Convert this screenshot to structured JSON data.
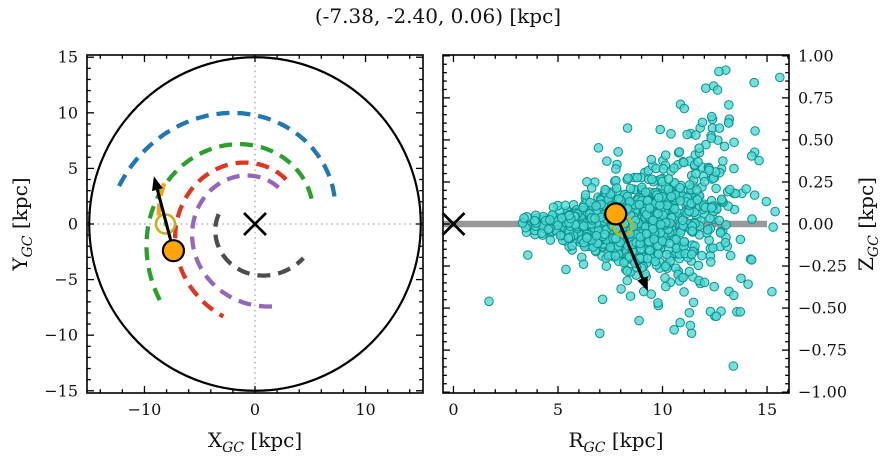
{
  "title": "(-7.38, -2.40, 0.06) [kpc]",
  "colors": {
    "background": "#ffffff",
    "spine": "#000000",
    "crosshair": "#a8a8a8",
    "boundary_circle": "#000000",
    "galactic_center_cross": "#000000",
    "sun_marker": "#c2b415",
    "star_marker": "#ffa508",
    "star_edge": "#000000",
    "arrow": "#000000",
    "scatter_fill": "#4fd8d2",
    "scatter_edge": "#0b8f8f",
    "midplane_line": "#999999"
  },
  "chart_data": [
    {
      "type": "line",
      "panel": "galactic-plane-top-view",
      "description": "Face-on Milky Way sketch: dashed spiral arms, solar-circle boundary (R=15 kpc), galactic center cross, Sun symbol, star position with velocity arrow",
      "xlabel": {
        "prefix": "X",
        "sub": "GC",
        "unit": "[kpc]"
      },
      "ylabel": {
        "prefix": "Y",
        "sub": "GC",
        "unit": "[kpc]"
      },
      "xlim": [
        -15.2,
        15.2
      ],
      "ylim": [
        -15.2,
        15.2
      ],
      "xticks": {
        "values": [
          -10,
          0,
          10
        ],
        "labels": [
          "−10",
          "0",
          "10"
        ],
        "minor_step": 2
      },
      "yticks": {
        "values": [
          15,
          10,
          5,
          0,
          -5,
          -10,
          -15
        ],
        "labels": [
          "15",
          "10",
          "5",
          "0",
          "−5",
          "−10",
          "−15"
        ],
        "minor_step": 1
      },
      "boundary_circle_radius_kpc": 15,
      "crosshair_at": [
        0,
        0
      ],
      "spiral_arms": [
        {
          "name": "outer-arm",
          "color": "#1f77b4",
          "theta1_deg": 19,
          "r1_kpc": 7.6,
          "theta2_deg": 167.5,
          "r2_kpc": 12.9
        },
        {
          "name": "perseus-arm",
          "color": "#2ca02c",
          "theta1_deg": 24,
          "r1_kpc": 5.6,
          "theta2_deg": 221,
          "r2_kpc": 11.1
        },
        {
          "name": "sagittarius-arm",
          "color": "#e0361f",
          "theta1_deg": 55,
          "r1_kpc": 4.9,
          "theta2_deg": 251,
          "r2_kpc": 8.8
        },
        {
          "name": "scutum-arm",
          "color": "#9467bd",
          "theta1_deg": 57,
          "r1_kpc": 3.9,
          "theta2_deg": 285,
          "r2_kpc": 7.65
        },
        {
          "name": "three-kpc-arm",
          "color": "#4d4d4d",
          "theta1_deg": 165,
          "r1_kpc": 3.4,
          "theta2_deg": 325,
          "r2_kpc": 5.35
        },
        {
          "name": "local-arm",
          "color": "#f5a31a",
          "theta1_deg": 156,
          "r1_kpc": 9.0,
          "theta2_deg": 175,
          "r2_kpc": 8.75
        }
      ],
      "markers": {
        "galactic_center": [
          0,
          0
        ],
        "sun": [
          -8.1,
          0.0
        ],
        "star": [
          -7.38,
          -2.4
        ],
        "velocity_arrow_from": [
          -7.38,
          -2.4
        ],
        "velocity_arrow_to": [
          -9.15,
          4.3
        ]
      }
    },
    {
      "type": "scatter",
      "panel": "r-z-side-view",
      "description": "Galactocentric radius vs height scatter of cluster/field stars; thick grey mid-plane line at Z=0; vertical spread of points flares with increasing R",
      "xlabel": {
        "prefix": "R",
        "sub": "GC",
        "unit": "[kpc]"
      },
      "ylabel": {
        "prefix": "Z",
        "sub": "GC",
        "unit": "[kpc]"
      },
      "xlim": [
        -0.5,
        16.05
      ],
      "ylim": [
        -1.005,
        1.005
      ],
      "xticks": {
        "values": [
          0,
          5,
          10,
          15
        ],
        "labels": [
          "0",
          "5",
          "10",
          "15"
        ],
        "minor_step": 1
      },
      "yticks": {
        "values": [
          1,
          0.75,
          0.5,
          0.25,
          0,
          -0.25,
          -0.5,
          -0.75,
          -1
        ],
        "labels": [
          "1.00",
          "0.75",
          "0.50",
          "0.25",
          "0.00",
          "−0.25",
          "−0.50",
          "−0.75",
          "−1.00"
        ],
        "minor_step": 0.05
      },
      "midplane_line": {
        "z": 0,
        "r_from": -0.5,
        "r_to": 15.0
      },
      "scatter_model": {
        "n_points": 1150,
        "seed": 42,
        "r_mean": 8.3,
        "r_sigma": 2.1,
        "r_tail_frac": 0.14,
        "r_tail_mean": 11.2,
        "r_tail_sigma": 2.0,
        "r_min": 3.3,
        "r_max": 15.7,
        "z_sigma_base": 0.065,
        "z_sigma_growth": 0.225,
        "z_sigma_ref_r": 6,
        "z_sigma_min": 0.04,
        "z_sigma_max": 0.42,
        "z_heavy_frac": 0.1,
        "z_heavy_scale": 2.8,
        "z_tilt_per_kpc": 0.012,
        "outliers": [
          [
            1.7,
            -0.46
          ],
          [
            7.0,
            -0.65
          ]
        ]
      },
      "markers": {
        "galactic_center": [
          0,
          0
        ],
        "sun": [
          8.1,
          -0.01
        ],
        "star": [
          7.76,
          0.06
        ],
        "velocity_arrow_from": [
          7.76,
          0.06
        ],
        "velocity_arrow_to": [
          9.3,
          -0.4
        ]
      }
    }
  ]
}
